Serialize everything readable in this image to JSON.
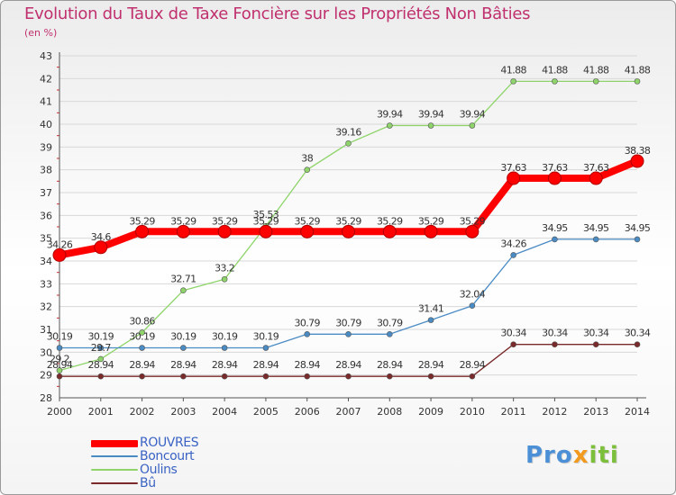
{
  "header": {
    "title": "Evolution du Taux de Taxe Foncière sur les Propriétés Non Bâties",
    "unit": "(en %)"
  },
  "logo": {
    "text": "Proxiti",
    "parts": [
      "Pro",
      "x",
      "iti"
    ]
  },
  "colors": {
    "title": "#c0306e",
    "legend_text": "#3a63c4",
    "axis_ticks": "#d22b2b"
  },
  "chart_data": {
    "type": "line",
    "title": "Evolution du Taux de Taxe Foncière sur les Propriétés Non Bâties",
    "ylabel": "(en %)",
    "xlabel": "",
    "categories": [
      "2000",
      "2001",
      "2002",
      "2003",
      "2004",
      "2005",
      "2006",
      "2007",
      "2008",
      "2009",
      "2010",
      "2011",
      "2012",
      "2013",
      "2014"
    ],
    "ylim": [
      28,
      43
    ],
    "yticks": [
      28,
      29,
      30,
      31,
      32,
      33,
      34,
      35,
      36,
      37,
      38,
      39,
      40,
      41,
      42,
      43
    ],
    "grid": "horizontal",
    "series": [
      {
        "name": "ROUVRES",
        "color": "#ff0000",
        "width": 8,
        "marker": 7,
        "labelDy": -8,
        "values": [
          34.26,
          34.6,
          35.29,
          35.29,
          35.29,
          35.29,
          35.29,
          35.29,
          35.29,
          35.29,
          35.29,
          37.63,
          37.63,
          37.63,
          38.38
        ],
        "labels": [
          "34.26",
          "34.6",
          "35.29",
          "35.29",
          "35.29",
          "35.29",
          "35.29",
          "35.29",
          "35.29",
          "35.29",
          "35.29",
          "37.63",
          "37.63",
          "37.63",
          "38.38"
        ]
      },
      {
        "name": "Boncourt",
        "color": "#4a8bc4",
        "width": 1.3,
        "marker": 3,
        "labelDy": -9,
        "values": [
          30.19,
          30.19,
          30.19,
          30.19,
          30.19,
          30.19,
          30.79,
          30.79,
          30.79,
          31.41,
          32.04,
          34.26,
          34.95,
          34.95,
          34.95
        ],
        "labels": [
          "30.19",
          "30.19",
          "30.19",
          "30.19",
          "30.19",
          "30.19",
          "30.79",
          "30.79",
          "30.79",
          "31.41",
          "32.04",
          "34.26",
          "34.95",
          "34.95",
          "34.95"
        ]
      },
      {
        "name": "Oulins",
        "color": "#8ed46a",
        "width": 1.3,
        "marker": 3,
        "labelDy": -9,
        "values": [
          29.2,
          29.7,
          30.86,
          32.71,
          33.2,
          35.53,
          38,
          39.16,
          39.94,
          39.94,
          39.94,
          41.88,
          41.88,
          41.88,
          41.88
        ],
        "labels": [
          "29.2",
          "29.7",
          "30.86",
          "32.71",
          "33.2",
          "35.53",
          "38",
          "39.16",
          "39.94",
          "39.94",
          "39.94",
          "41.88",
          "41.88",
          "41.88",
          "41.88"
        ]
      },
      {
        "name": "Bû",
        "color": "#7a2a2a",
        "width": 1.3,
        "marker": 3,
        "labelDy": -9,
        "values": [
          28.94,
          28.94,
          28.94,
          28.94,
          28.94,
          28.94,
          28.94,
          28.94,
          28.94,
          28.94,
          28.94,
          30.34,
          30.34,
          30.34,
          30.34
        ],
        "labels": [
          "28.94",
          "28.94",
          "28.94",
          "28.94",
          "28.94",
          "28.94",
          "28.94",
          "28.94",
          "28.94",
          "28.94",
          "28.94",
          "30.34",
          "30.34",
          "30.34",
          "30.34"
        ]
      }
    ],
    "legend_position": "bottom-left",
    "legend": [
      "ROUVRES",
      "Boncourt",
      "Oulins",
      "Bû"
    ]
  }
}
